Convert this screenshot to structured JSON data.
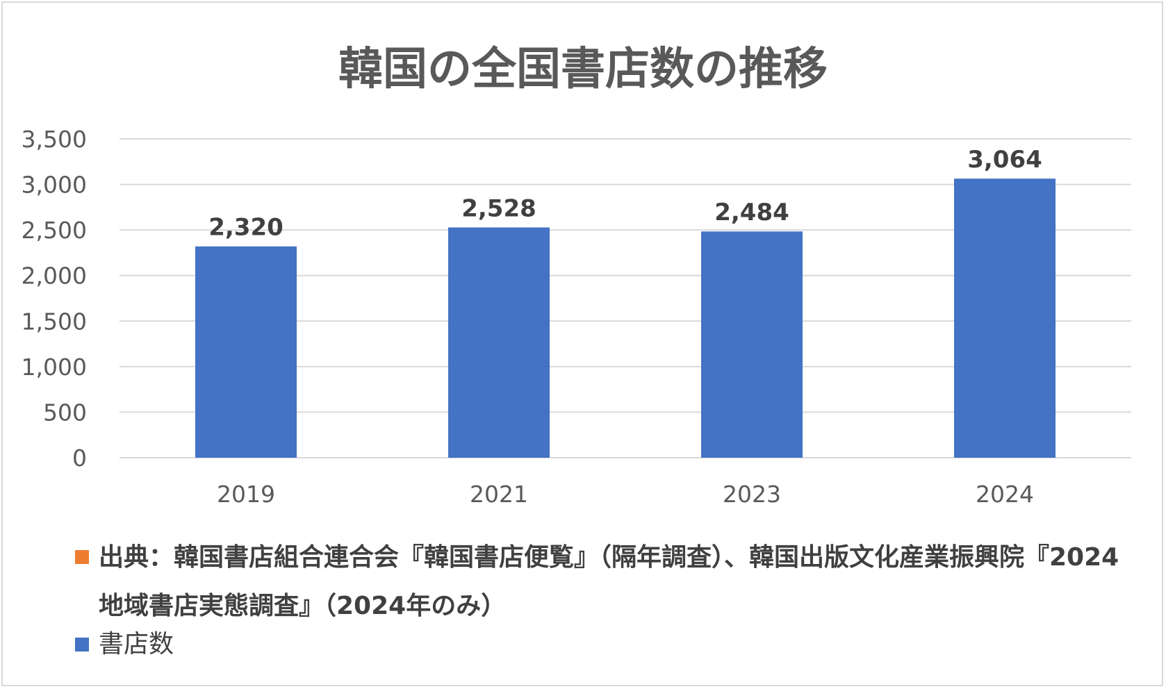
{
  "chart_data": {
    "type": "bar",
    "title": "韓国の全国書店数の推移",
    "categories": [
      "2019",
      "2021",
      "2023",
      "2024"
    ],
    "series": [
      {
        "name": "書店数",
        "values": [
          2320,
          2528,
          2484,
          3064
        ],
        "data_labels": [
          "2,320",
          "2,528",
          "2,484",
          "3,064"
        ],
        "color": "#4472c4"
      }
    ],
    "ylim": [
      0,
      3500
    ],
    "yticks": [
      0,
      500,
      1000,
      1500,
      2000,
      2500,
      3000,
      3500
    ],
    "ytick_labels": [
      "0",
      "500",
      "1,000",
      "1,500",
      "2,000",
      "2,500",
      "3,000",
      "3,500"
    ],
    "xlabel": "",
    "ylabel": "",
    "grid": true,
    "legend": {
      "placement": "bottom",
      "entries": [
        {
          "label": "出典：韓国書店組合連合会『韓国書店便覧』（隔年調査）、韓国出版文化産業振興院『2024地域書店実態調査』（2024年のみ）",
          "color": "#ed7d31"
        },
        {
          "label": "書店数",
          "color": "#4472c4"
        }
      ]
    }
  },
  "colors": {
    "bar": "#4472c4",
    "grid": "#d9d9d9",
    "axis_text": "#595959",
    "data_label": "#404040"
  }
}
